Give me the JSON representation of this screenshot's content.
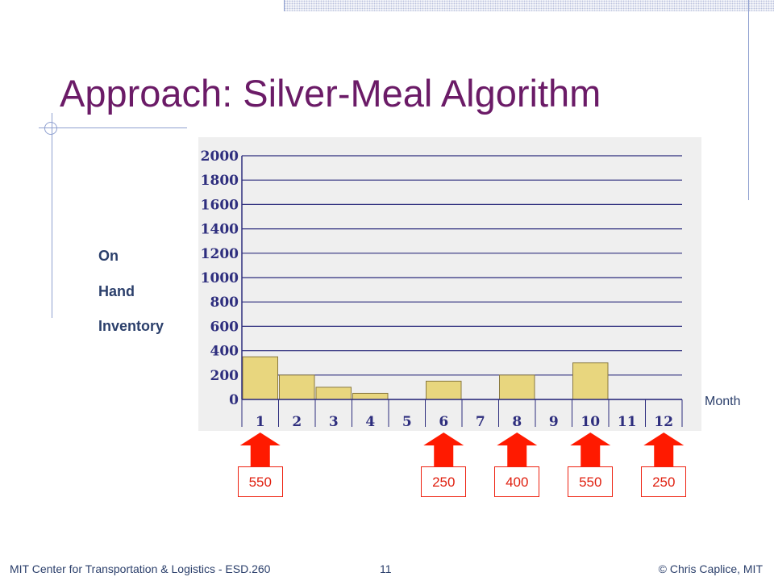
{
  "slide": {
    "title": "Approach: Silver-Meal Algorithm",
    "footer_left": "MIT Center for Transportation & Logistics - ESD.260",
    "page_number": "11",
    "footer_right": "© Chris Caplice, MIT"
  },
  "colors": {
    "title": "#6b1b67",
    "bar_fill": "#e8d67e",
    "bar_stroke": "#8a7a40",
    "grid": "#2e2e7e",
    "arrow": "#ff1a00"
  },
  "chart_data": {
    "type": "bar",
    "ylabel_lines": [
      "On",
      "Hand",
      "Inventory"
    ],
    "xlabel": "Month",
    "categories": [
      "1",
      "2",
      "3",
      "4",
      "5",
      "6",
      "7",
      "8",
      "9",
      "10",
      "11",
      "12"
    ],
    "values": [
      350,
      200,
      100,
      50,
      0,
      150,
      0,
      200,
      0,
      300,
      0,
      0
    ],
    "y_ticks": [
      0,
      200,
      400,
      600,
      800,
      1000,
      1200,
      1400,
      1600,
      1800,
      2000
    ],
    "ylim": [
      0,
      2000
    ],
    "grid": true,
    "orders": [
      {
        "month": 1,
        "qty": "550"
      },
      {
        "month": 6,
        "qty": "250"
      },
      {
        "month": 8,
        "qty": "400"
      },
      {
        "month": 10,
        "qty": "550"
      },
      {
        "month": 12,
        "qty": "250"
      }
    ]
  }
}
